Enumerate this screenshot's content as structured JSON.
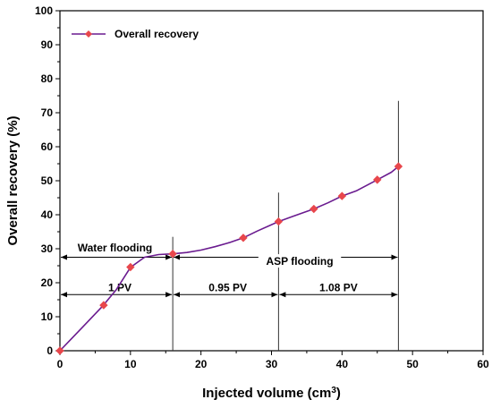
{
  "chart_data": {
    "type": "line",
    "xlabel": "Injected volume (cm",
    "xlabel_sup": "3",
    "xlabel_close": ")",
    "ylabel": "Overall recovery (%)",
    "xlim": [
      0,
      60
    ],
    "ylim": [
      0,
      100
    ],
    "xticks": [
      0,
      10,
      20,
      30,
      40,
      50,
      60
    ],
    "yticks": [
      0,
      10,
      20,
      30,
      40,
      50,
      60,
      70,
      80,
      90,
      100
    ],
    "grid": false,
    "legend_position": "top-left",
    "colors": {
      "line": "#6a1b8f",
      "marker": "#e8474c"
    },
    "series": [
      {
        "name": "Overall recovery",
        "curve": [
          [
            0,
            0
          ],
          [
            3,
            6.5
          ],
          [
            6,
            13
          ],
          [
            8,
            18
          ],
          [
            10,
            24.5
          ],
          [
            12,
            27.5
          ],
          [
            14,
            28.3
          ],
          [
            16,
            28.5
          ],
          [
            18,
            28.9
          ],
          [
            20,
            29.6
          ],
          [
            22,
            30.6
          ],
          [
            24,
            31.8
          ],
          [
            26,
            33.2
          ],
          [
            28,
            35.2
          ],
          [
            31,
            38
          ],
          [
            33,
            39.5
          ],
          [
            36,
            41.7
          ],
          [
            38,
            43.5
          ],
          [
            40,
            45.5
          ],
          [
            42,
            47
          ],
          [
            45,
            50.3
          ],
          [
            47,
            52.5
          ],
          [
            48,
            54.2
          ]
        ],
        "markers": [
          [
            0,
            0
          ],
          [
            6.2,
            13.4
          ],
          [
            10,
            24.6
          ],
          [
            16,
            28.5
          ],
          [
            26,
            33.2
          ],
          [
            31,
            38
          ],
          [
            36,
            41.7
          ],
          [
            40,
            45.5
          ],
          [
            45,
            50.3
          ],
          [
            48,
            54.2
          ]
        ]
      }
    ],
    "verticals": [
      {
        "x": 16,
        "y_top": 33.5
      },
      {
        "x": 31,
        "y_top": 46.5
      },
      {
        "x": 48,
        "y_top": 73.5
      }
    ],
    "annotations": [
      {
        "text": "Water flooding",
        "x_from": 0,
        "x_to": 16,
        "y": 27.5,
        "label_x": 7.8,
        "label_y": 30.2
      },
      {
        "text": "ASP flooding",
        "x_from": 16,
        "x_to": 48,
        "y": 27.5,
        "label_x": 34,
        "label_y": 26.3
      },
      {
        "text": "1 PV",
        "x_from": 0,
        "x_to": 16,
        "y": 16.5,
        "label_x": 8.5,
        "label_y": 18.6
      },
      {
        "text": "0.95 PV",
        "x_from": 16,
        "x_to": 31,
        "y": 16.5,
        "label_x": 23.8,
        "label_y": 18.6
      },
      {
        "text": "1.08 PV",
        "x_from": 31,
        "x_to": 48,
        "y": 16.5,
        "label_x": 39.5,
        "label_y": 18.6
      }
    ]
  }
}
